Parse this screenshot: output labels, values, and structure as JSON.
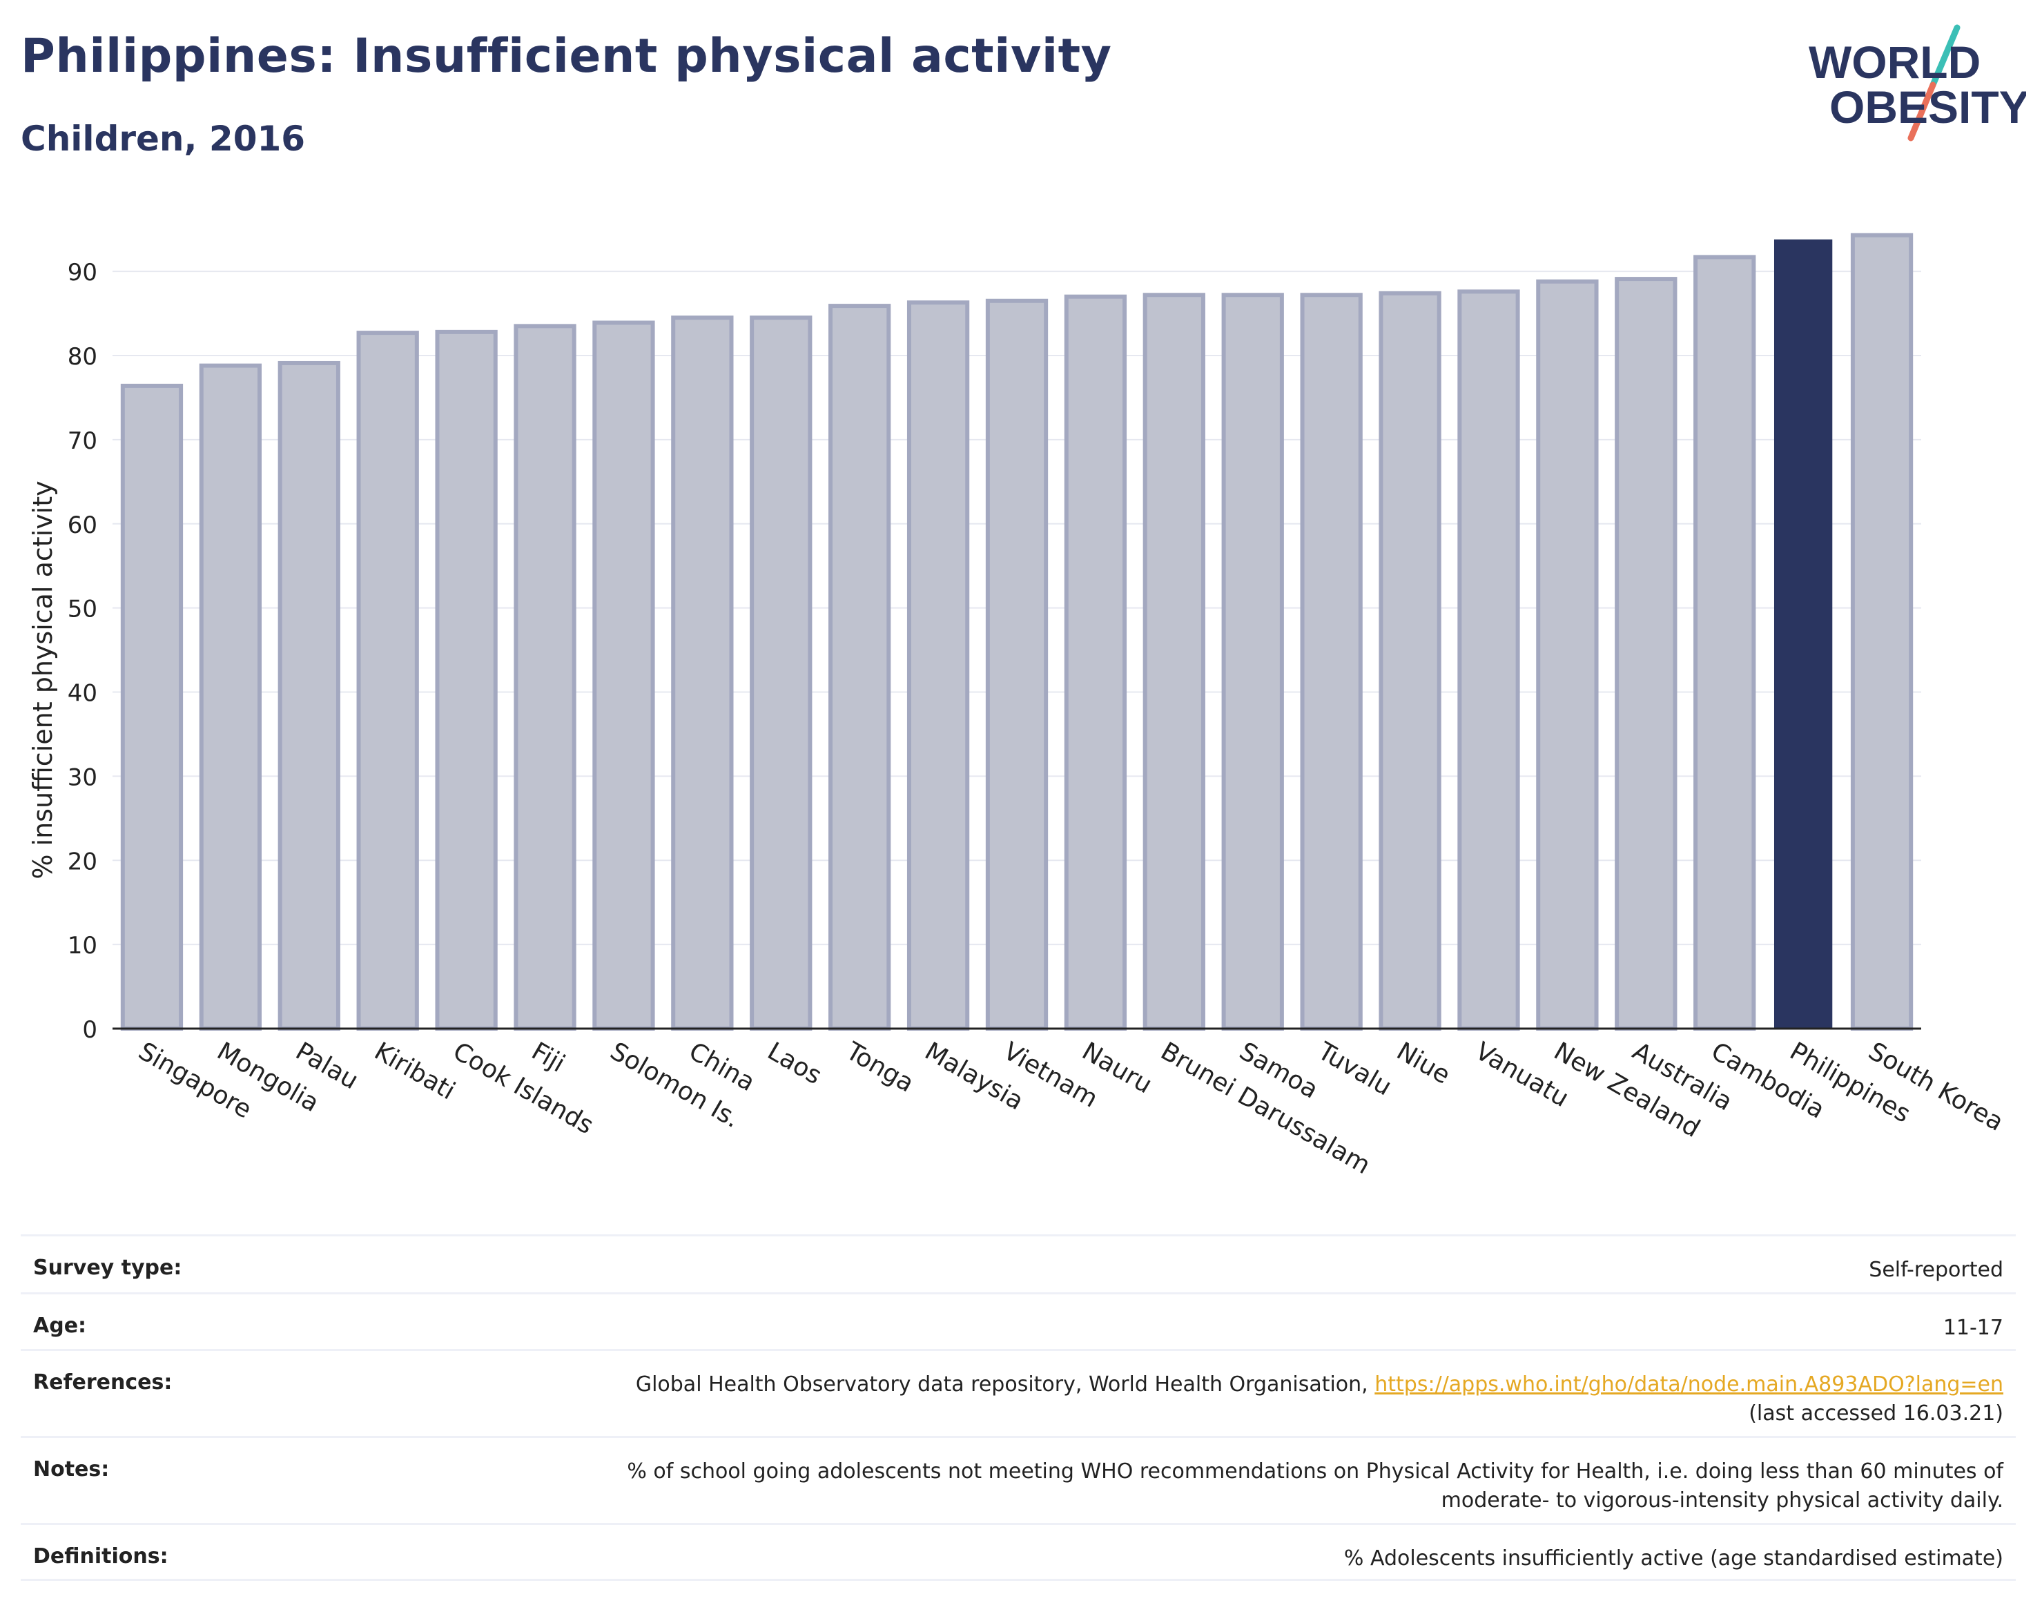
{
  "header": {
    "title": "Philippines: Insufficient physical activity",
    "subtitle": "Children, 2016"
  },
  "logo": {
    "line1": "WORLD",
    "line2": "OBESITY",
    "colors": {
      "text": "#2a3560",
      "slash_top": "#3bbfb6",
      "slash_bottom": "#e9705a"
    }
  },
  "chart_data": {
    "type": "bar",
    "categories": [
      "Singapore",
      "Mongolia",
      "Palau",
      "Kiribati",
      "Cook Islands",
      "Fiji",
      "Solomon Is.",
      "China",
      "Laos",
      "Tonga",
      "Malaysia",
      "Vietnam",
      "Nauru",
      "Brunei Darussalam",
      "Samoa",
      "Tuvalu",
      "Niue",
      "Vanuatu",
      "New Zealand",
      "Australia",
      "Cambodia",
      "Philippines",
      "South Korea"
    ],
    "values": [
      76.4,
      78.8,
      79.1,
      82.7,
      82.8,
      83.5,
      83.9,
      84.5,
      84.5,
      85.9,
      86.3,
      86.5,
      87.0,
      87.2,
      87.2,
      87.2,
      87.4,
      87.6,
      88.8,
      89.1,
      91.7,
      93.8,
      94.3
    ],
    "highlight": "Philippines",
    "title": "",
    "xlabel": "",
    "ylabel": "% insufficient physical activity",
    "ylim": [
      0,
      96
    ],
    "yticks": [
      0,
      10,
      20,
      30,
      40,
      50,
      60,
      70,
      80,
      90
    ],
    "grid": true,
    "colors": {
      "bar": "#bfc2cf",
      "bar_edge": "#a3a8c0",
      "highlight": "#2a3560",
      "grid": "#e6e8f0"
    }
  },
  "info": {
    "survey_type": {
      "label": "Survey type:",
      "value": "Self-reported"
    },
    "age": {
      "label": "Age:",
      "value": "11-17"
    },
    "references": {
      "label": "References:",
      "text": "Global Health Observatory data repository, World Health Organisation,",
      "link": "https://apps.who.int/gho/data/node.main.A893ADO?lang=en",
      "accessed": "(last accessed 16.03.21)"
    },
    "notes": {
      "label": "Notes:",
      "line1": "% of school going adolescents not meeting WHO recommendations on Physical Activity for Health, i.e. doing less than 60 minutes of",
      "line2": "moderate- to vigorous-intensity physical activity daily."
    },
    "definitions": {
      "label": "Definitions:",
      "value": "% Adolescents insufficiently active (age standardised estimate)"
    }
  }
}
